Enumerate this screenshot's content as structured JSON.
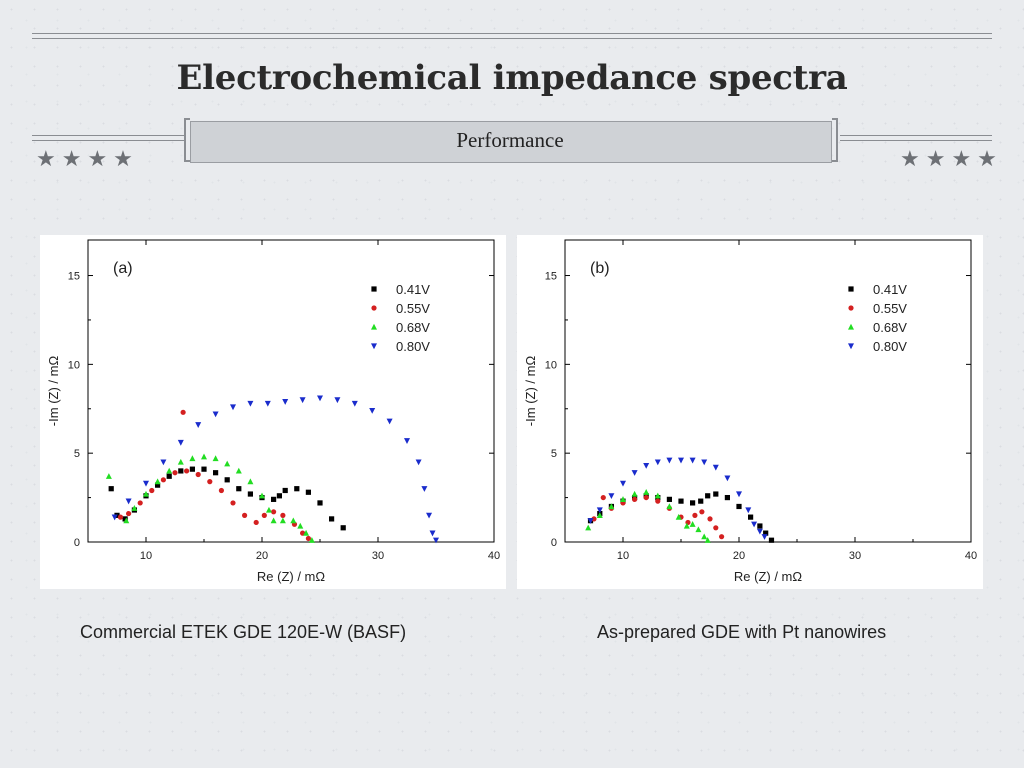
{
  "slide": {
    "title": "Electrochemical impedance spectra",
    "subtitle": "Performance",
    "stars_left": "★★★★",
    "stars_right": "★★★★"
  },
  "captions": {
    "left": "Commercial ETEK GDE 120E-W (BASF)",
    "right": "As-prepared GDE with Pt nanowires"
  },
  "colors": {
    "0.41V": "#000000",
    "0.55V": "#d42020",
    "0.68V": "#22dd22",
    "0.80V": "#1a2ccc"
  },
  "chart_data": [
    {
      "type": "scatter",
      "panel_label": "(a)",
      "xlabel": "Re (Z) / mΩ",
      "ylabel": "-Im (Z) / mΩ",
      "xlim": [
        5,
        40
      ],
      "ylim": [
        0,
        17
      ],
      "xticks": [
        10,
        20,
        30,
        40
      ],
      "yticks": [
        0,
        5,
        10,
        15
      ],
      "legend_position": "top-right",
      "series": [
        {
          "name": "0.41V",
          "marker": "square",
          "points": [
            [
              7.0,
              3.0
            ],
            [
              7.5,
              1.5
            ],
            [
              8.2,
              1.3
            ],
            [
              9,
              1.8
            ],
            [
              10,
              2.6
            ],
            [
              11,
              3.2
            ],
            [
              12,
              3.7
            ],
            [
              13,
              4.0
            ],
            [
              14,
              4.1
            ],
            [
              15,
              4.1
            ],
            [
              16,
              3.9
            ],
            [
              17,
              3.5
            ],
            [
              18,
              3.0
            ],
            [
              19,
              2.7
            ],
            [
              20,
              2.5
            ],
            [
              21,
              2.4
            ],
            [
              21.5,
              2.6
            ],
            [
              22,
              2.9
            ],
            [
              23,
              3.0
            ],
            [
              24,
              2.8
            ],
            [
              25,
              2.2
            ],
            [
              26,
              1.3
            ],
            [
              27,
              0.8
            ]
          ]
        },
        {
          "name": "0.55V",
          "marker": "circle",
          "points": [
            [
              13.2,
              7.3
            ],
            [
              7.8,
              1.4
            ],
            [
              8.5,
              1.6
            ],
            [
              9.5,
              2.2
            ],
            [
              10.5,
              2.9
            ],
            [
              11.5,
              3.5
            ],
            [
              12.5,
              3.9
            ],
            [
              13.5,
              4.0
            ],
            [
              14.5,
              3.8
            ],
            [
              15.5,
              3.4
            ],
            [
              16.5,
              2.9
            ],
            [
              17.5,
              2.2
            ],
            [
              18.5,
              1.5
            ],
            [
              19.5,
              1.1
            ],
            [
              20.2,
              1.5
            ],
            [
              21,
              1.7
            ],
            [
              21.8,
              1.5
            ],
            [
              22.8,
              1.0
            ],
            [
              23.5,
              0.5
            ],
            [
              24,
              0.2
            ]
          ]
        },
        {
          "name": "0.68V",
          "marker": "triangle-up",
          "points": [
            [
              6.8,
              3.7
            ],
            [
              8.3,
              1.2
            ],
            [
              9,
              1.9
            ],
            [
              10,
              2.7
            ],
            [
              11,
              3.4
            ],
            [
              12,
              4.0
            ],
            [
              13,
              4.5
            ],
            [
              14,
              4.7
            ],
            [
              15,
              4.8
            ],
            [
              16,
              4.7
            ],
            [
              17,
              4.4
            ],
            [
              18,
              4.0
            ],
            [
              19,
              3.4
            ],
            [
              20,
              2.6
            ],
            [
              20.6,
              1.8
            ],
            [
              21,
              1.2
            ],
            [
              21.8,
              1.2
            ],
            [
              22.7,
              1.2
            ],
            [
              23.3,
              0.9
            ],
            [
              23.8,
              0.5
            ],
            [
              24.3,
              0.1
            ]
          ]
        },
        {
          "name": "0.80V",
          "marker": "triangle-down",
          "points": [
            [
              7.3,
              1.4
            ],
            [
              8.5,
              2.3
            ],
            [
              10,
              3.3
            ],
            [
              11.5,
              4.5
            ],
            [
              13,
              5.6
            ],
            [
              14.5,
              6.6
            ],
            [
              16,
              7.2
            ],
            [
              17.5,
              7.6
            ],
            [
              19,
              7.8
            ],
            [
              20.5,
              7.8
            ],
            [
              22,
              7.9
            ],
            [
              23.5,
              8.0
            ],
            [
              25,
              8.1
            ],
            [
              26.5,
              8.0
            ],
            [
              28,
              7.8
            ],
            [
              29.5,
              7.4
            ],
            [
              31,
              6.8
            ],
            [
              32.5,
              5.7
            ],
            [
              33.5,
              4.5
            ],
            [
              34,
              3.0
            ],
            [
              34.4,
              1.5
            ],
            [
              34.7,
              0.5
            ],
            [
              35,
              0.1
            ]
          ]
        }
      ]
    },
    {
      "type": "scatter",
      "panel_label": "(b)",
      "xlabel": "Re (Z) / mΩ",
      "ylabel": "-Im (Z) / mΩ",
      "xlim": [
        5,
        40
      ],
      "ylim": [
        0,
        17
      ],
      "xticks": [
        10,
        20,
        30,
        40
      ],
      "yticks": [
        0,
        5,
        10,
        15
      ],
      "legend_position": "top-right",
      "series": [
        {
          "name": "0.41V",
          "marker": "square",
          "points": [
            [
              7.2,
              1.2
            ],
            [
              8,
              1.6
            ],
            [
              9,
              2.0
            ],
            [
              10,
              2.3
            ],
            [
              11,
              2.5
            ],
            [
              12,
              2.6
            ],
            [
              13,
              2.5
            ],
            [
              14,
              2.4
            ],
            [
              15,
              2.3
            ],
            [
              16,
              2.2
            ],
            [
              16.7,
              2.3
            ],
            [
              17.3,
              2.6
            ],
            [
              18,
              2.7
            ],
            [
              19,
              2.5
            ],
            [
              20,
              2.0
            ],
            [
              21,
              1.4
            ],
            [
              21.8,
              0.9
            ],
            [
              22.3,
              0.5
            ],
            [
              22.8,
              0.1
            ]
          ]
        },
        {
          "name": "0.55V",
          "marker": "circle",
          "points": [
            [
              8.3,
              2.5
            ],
            [
              7.5,
              1.3
            ],
            [
              9,
              1.9
            ],
            [
              10,
              2.2
            ],
            [
              11,
              2.4
            ],
            [
              12,
              2.5
            ],
            [
              13,
              2.3
            ],
            [
              14,
              1.9
            ],
            [
              15,
              1.4
            ],
            [
              15.6,
              1.1
            ],
            [
              16.2,
              1.5
            ],
            [
              16.8,
              1.7
            ],
            [
              17.5,
              1.3
            ],
            [
              18,
              0.8
            ],
            [
              18.5,
              0.3
            ]
          ]
        },
        {
          "name": "0.68V",
          "marker": "triangle-up",
          "points": [
            [
              7,
              0.8
            ],
            [
              8,
              1.5
            ],
            [
              9,
              2.0
            ],
            [
              10,
              2.4
            ],
            [
              11,
              2.7
            ],
            [
              12,
              2.8
            ],
            [
              13,
              2.6
            ],
            [
              14,
              2.0
            ],
            [
              14.8,
              1.4
            ],
            [
              15.5,
              0.9
            ],
            [
              16,
              1.0
            ],
            [
              16.5,
              0.7
            ],
            [
              17,
              0.3
            ],
            [
              17.3,
              0.1
            ]
          ]
        },
        {
          "name": "0.80V",
          "marker": "triangle-down",
          "points": [
            [
              7.2,
              1.2
            ],
            [
              8,
              1.8
            ],
            [
              9,
              2.6
            ],
            [
              10,
              3.3
            ],
            [
              11,
              3.9
            ],
            [
              12,
              4.3
            ],
            [
              13,
              4.5
            ],
            [
              14,
              4.6
            ],
            [
              15,
              4.6
            ],
            [
              16,
              4.6
            ],
            [
              17,
              4.5
            ],
            [
              18,
              4.2
            ],
            [
              19,
              3.6
            ],
            [
              20,
              2.7
            ],
            [
              20.8,
              1.8
            ],
            [
              21.3,
              1.0
            ],
            [
              21.8,
              0.6
            ],
            [
              22.2,
              0.3
            ]
          ]
        }
      ]
    }
  ]
}
